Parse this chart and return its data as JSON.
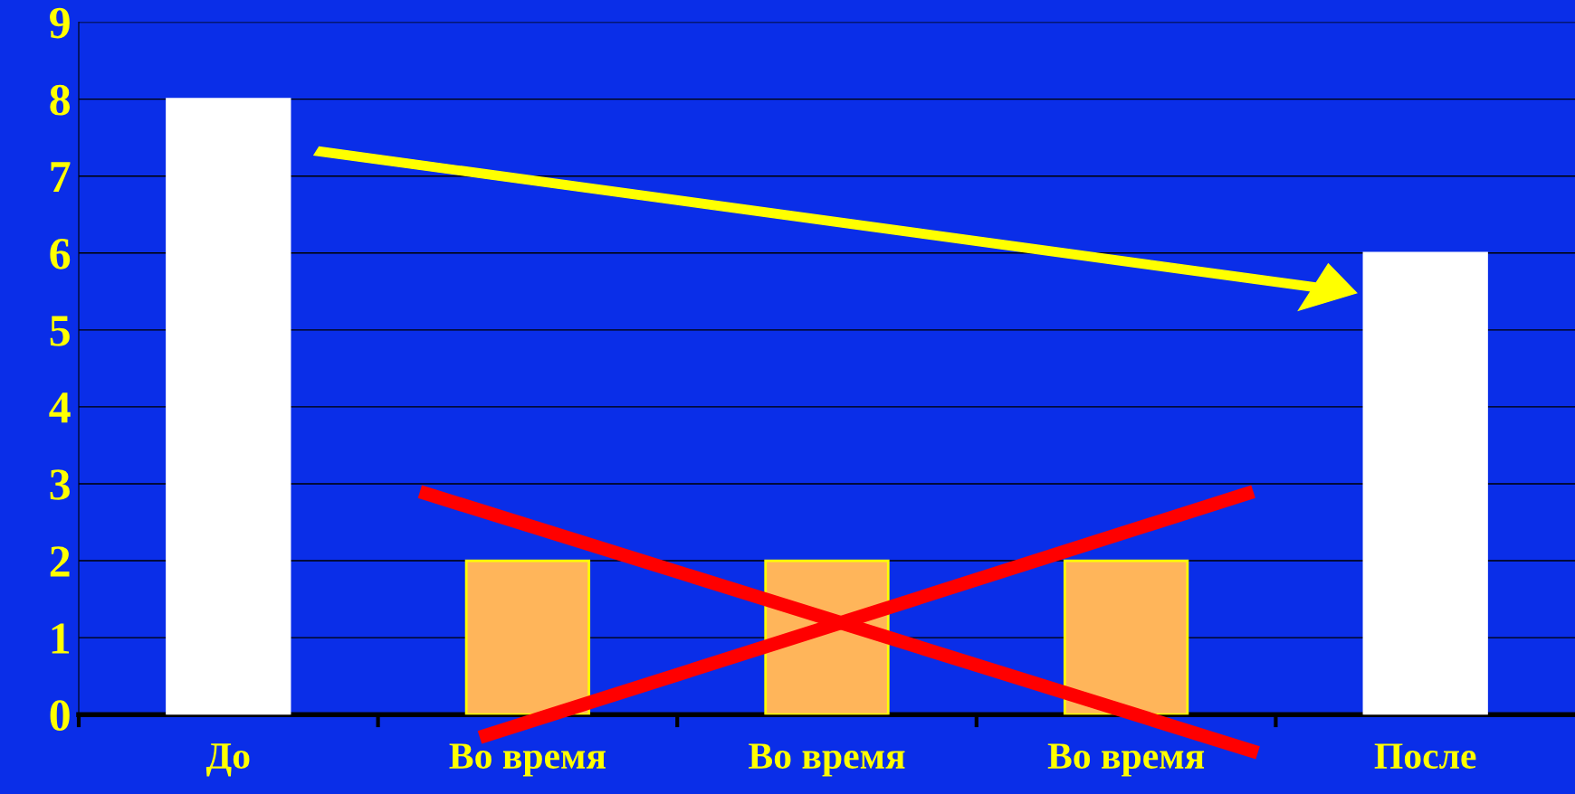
{
  "chart_data": {
    "type": "bar",
    "categories": [
      "До",
      "Во время",
      "Во время",
      "Во время",
      "После"
    ],
    "values": [
      8,
      2,
      2,
      2,
      6
    ],
    "colors": [
      "#ffffff",
      "#ffb55a",
      "#ffb55a",
      "#ffb55a",
      "#ffffff"
    ],
    "ylim": [
      0,
      9
    ],
    "yticks": [
      0,
      1,
      2,
      3,
      4,
      5,
      6,
      7,
      8,
      9
    ],
    "grid": "y",
    "legend": false
  }
}
